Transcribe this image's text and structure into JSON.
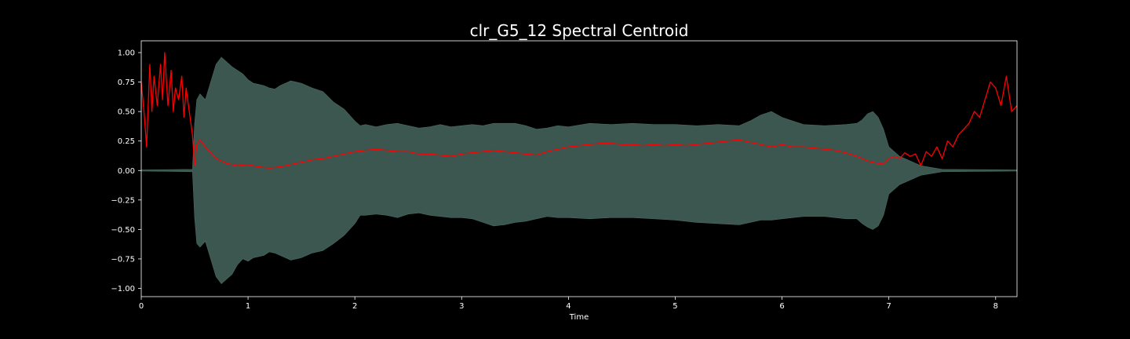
{
  "chart_data": {
    "type": "line",
    "title": "clr_G5_12 Spectral Centroid",
    "xlabel": "Time",
    "ylabel": "",
    "xlim": [
      0,
      8.2
    ],
    "ylim": [
      -1.07,
      1.1
    ],
    "xticks": [
      0,
      1,
      2,
      3,
      4,
      5,
      6,
      7,
      8
    ],
    "yticks": [
      -1.0,
      -0.75,
      -0.5,
      -0.25,
      0.0,
      0.25,
      0.5,
      0.75,
      1.0
    ],
    "ytick_labels": [
      "−1.00",
      "−0.75",
      "−0.50",
      "−0.25",
      "0.00",
      "0.25",
      "0.50",
      "0.75",
      "1.00"
    ],
    "grid": false,
    "background_color": "#000000",
    "series": [
      {
        "kind": "waveform_envelope",
        "color": "#3b5750",
        "x": [
          0,
          0.48,
          0.5,
          0.52,
          0.55,
          0.6,
          0.65,
          0.7,
          0.75,
          0.8,
          0.85,
          0.9,
          0.95,
          1.0,
          1.05,
          1.1,
          1.15,
          1.2,
          1.25,
          1.3,
          1.4,
          1.45,
          1.5,
          1.6,
          1.7,
          1.8,
          1.9,
          2.0,
          2.05,
          2.1,
          2.2,
          2.3,
          2.4,
          2.5,
          2.6,
          2.7,
          2.8,
          2.9,
          3.0,
          3.1,
          3.2,
          3.3,
          3.4,
          3.5,
          3.6,
          3.7,
          3.8,
          3.9,
          4.0,
          4.2,
          4.4,
          4.6,
          4.8,
          5.0,
          5.2,
          5.4,
          5.6,
          5.7,
          5.8,
          5.9,
          6.0,
          6.2,
          6.4,
          6.6,
          6.7,
          6.75,
          6.8,
          6.85,
          6.9,
          6.95,
          7.0,
          7.1,
          7.2,
          7.3,
          7.5,
          8.2
        ],
        "upper": [
          0.005,
          0.01,
          0.4,
          0.6,
          0.65,
          0.6,
          0.75,
          0.9,
          0.96,
          0.92,
          0.88,
          0.85,
          0.82,
          0.77,
          0.74,
          0.73,
          0.72,
          0.7,
          0.69,
          0.72,
          0.76,
          0.75,
          0.74,
          0.7,
          0.67,
          0.58,
          0.52,
          0.42,
          0.38,
          0.39,
          0.37,
          0.39,
          0.4,
          0.38,
          0.36,
          0.37,
          0.39,
          0.37,
          0.38,
          0.39,
          0.38,
          0.4,
          0.4,
          0.4,
          0.38,
          0.35,
          0.36,
          0.38,
          0.37,
          0.4,
          0.39,
          0.4,
          0.39,
          0.39,
          0.38,
          0.39,
          0.38,
          0.42,
          0.47,
          0.5,
          0.45,
          0.39,
          0.38,
          0.39,
          0.4,
          0.43,
          0.48,
          0.5,
          0.45,
          0.35,
          0.2,
          0.12,
          0.08,
          0.04,
          0.01,
          0.005
        ],
        "lower": [
          -0.005,
          -0.01,
          -0.4,
          -0.62,
          -0.65,
          -0.6,
          -0.75,
          -0.9,
          -0.96,
          -0.92,
          -0.88,
          -0.8,
          -0.75,
          -0.77,
          -0.74,
          -0.73,
          -0.72,
          -0.69,
          -0.7,
          -0.72,
          -0.76,
          -0.75,
          -0.74,
          -0.7,
          -0.68,
          -0.62,
          -0.55,
          -0.45,
          -0.38,
          -0.38,
          -0.37,
          -0.38,
          -0.4,
          -0.37,
          -0.36,
          -0.38,
          -0.39,
          -0.4,
          -0.4,
          -0.41,
          -0.44,
          -0.47,
          -0.46,
          -0.44,
          -0.43,
          -0.41,
          -0.39,
          -0.4,
          -0.4,
          -0.41,
          -0.4,
          -0.4,
          -0.41,
          -0.42,
          -0.44,
          -0.45,
          -0.46,
          -0.44,
          -0.42,
          -0.42,
          -0.41,
          -0.39,
          -0.39,
          -0.41,
          -0.41,
          -0.45,
          -0.48,
          -0.5,
          -0.47,
          -0.38,
          -0.2,
          -0.12,
          -0.08,
          -0.04,
          -0.01,
          -0.005
        ]
      },
      {
        "kind": "spectral_centroid",
        "color": "#ff0000",
        "x": [
          0,
          0.03,
          0.05,
          0.08,
          0.1,
          0.12,
          0.15,
          0.18,
          0.2,
          0.22,
          0.25,
          0.28,
          0.3,
          0.32,
          0.35,
          0.38,
          0.4,
          0.42,
          0.45,
          0.48,
          0.5,
          0.52,
          0.55,
          0.6,
          0.7,
          0.8,
          0.9,
          1.0,
          1.1,
          1.2,
          1.3,
          1.4,
          1.5,
          1.6,
          1.7,
          1.8,
          1.9,
          2.0,
          2.1,
          2.2,
          2.3,
          2.4,
          2.5,
          2.6,
          2.7,
          2.8,
          2.9,
          3.0,
          3.1,
          3.2,
          3.3,
          3.4,
          3.5,
          3.6,
          3.7,
          3.8,
          3.9,
          4.0,
          4.1,
          4.2,
          4.3,
          4.4,
          4.5,
          4.6,
          4.7,
          4.8,
          4.9,
          5.0,
          5.1,
          5.2,
          5.3,
          5.4,
          5.5,
          5.6,
          5.7,
          5.8,
          5.9,
          6.0,
          6.1,
          6.2,
          6.3,
          6.4,
          6.5,
          6.6,
          6.7,
          6.8,
          6.9,
          6.95,
          7.0,
          7.05,
          7.1,
          7.15,
          7.2,
          7.25,
          7.3,
          7.35,
          7.4,
          7.45,
          7.5,
          7.55,
          7.6,
          7.65,
          7.7,
          7.75,
          7.8,
          7.85,
          7.9,
          7.95,
          8.0,
          8.05,
          8.1,
          8.15,
          8.2
        ],
        "y": [
          0.75,
          0.45,
          0.2,
          0.9,
          0.5,
          0.8,
          0.55,
          0.9,
          0.6,
          1.0,
          0.55,
          0.85,
          0.5,
          0.7,
          0.6,
          0.8,
          0.45,
          0.7,
          0.5,
          0.3,
          0.04,
          0.22,
          0.26,
          0.2,
          0.1,
          0.06,
          0.04,
          0.05,
          0.03,
          0.02,
          0.03,
          0.05,
          0.07,
          0.09,
          0.1,
          0.12,
          0.14,
          0.16,
          0.17,
          0.18,
          0.17,
          0.16,
          0.16,
          0.14,
          0.14,
          0.13,
          0.12,
          0.14,
          0.15,
          0.16,
          0.17,
          0.16,
          0.15,
          0.14,
          0.13,
          0.16,
          0.18,
          0.2,
          0.21,
          0.22,
          0.23,
          0.23,
          0.22,
          0.22,
          0.21,
          0.22,
          0.21,
          0.22,
          0.21,
          0.22,
          0.23,
          0.24,
          0.25,
          0.26,
          0.24,
          0.22,
          0.2,
          0.22,
          0.2,
          0.2,
          0.19,
          0.18,
          0.17,
          0.15,
          0.12,
          0.08,
          0.06,
          0.06,
          0.1,
          0.12,
          0.1,
          0.15,
          0.12,
          0.14,
          0.04,
          0.16,
          0.12,
          0.2,
          0.1,
          0.25,
          0.2,
          0.3,
          0.35,
          0.4,
          0.5,
          0.45,
          0.6,
          0.75,
          0.7,
          0.55,
          0.8,
          0.5,
          0.55
        ]
      }
    ]
  }
}
